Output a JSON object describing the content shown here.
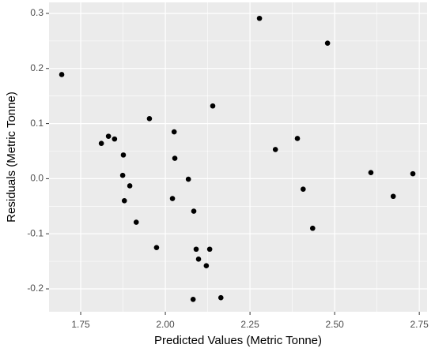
{
  "chart_data": {
    "type": "scatter",
    "x_label": "Predicted Values (Metric Tonne)",
    "y_label": "Residuals (Metric Tonne)",
    "color": "#000000",
    "grid": true,
    "xlim": [
      1.6565,
      2.773
    ],
    "ylim": [
      -0.2415,
      0.32
    ],
    "xticks": [
      1.75,
      {
        "value": 2,
        "label": "2.00"
      },
      2.25,
      {
        "value": 2.5,
        "label": "2.50"
      },
      2.75
    ],
    "yticks": [
      -0.2,
      -0.1,
      {
        "value": 0,
        "label": "0.0"
      },
      0.1,
      0.2,
      0.3
    ],
    "x": [
      1.694,
      1.811,
      1.832,
      1.85,
      1.876,
      1.874,
      1.895,
      1.879,
      1.914,
      1.953,
      1.974,
      2.026,
      2.028,
      2.021,
      2.068,
      2.084,
      2.082,
      2.091,
      2.098,
      2.121,
      2.131,
      2.14,
      2.164,
      2.278,
      2.325,
      2.39,
      2.407,
      2.435,
      2.479,
      2.607,
      2.673,
      2.731
    ],
    "values": [
      0.189,
      0.064,
      0.077,
      0.072,
      0.043,
      0.006,
      -0.013,
      -0.04,
      -0.079,
      0.109,
      -0.125,
      0.085,
      0.037,
      -0.036,
      -0.001,
      -0.059,
      -0.219,
      -0.128,
      -0.146,
      -0.158,
      -0.128,
      0.132,
      -0.216,
      0.291,
      0.053,
      0.073,
      -0.019,
      -0.09,
      0.246,
      0.011,
      -0.032,
      0.009
    ]
  }
}
